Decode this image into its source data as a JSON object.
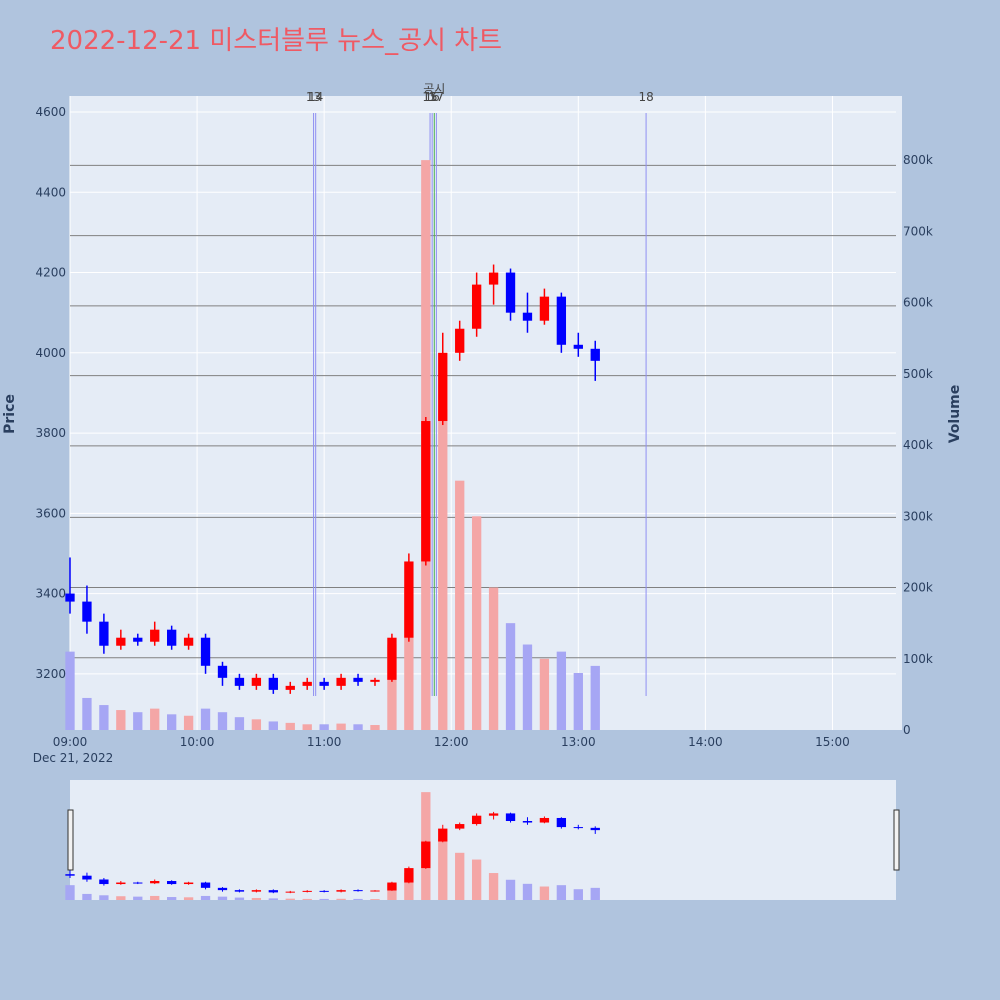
{
  "chart_data": {
    "type": "candlestick",
    "title": "2022-12-21 미스터블루 뉴스_공시 차트",
    "xlabel": "",
    "ylabel": "Price",
    "y2label": "Volume",
    "x_start": "09:00",
    "x_end": "15:30",
    "x_date_label": "Dec 21, 2022",
    "x_ticks": [
      "09:00",
      "10:00",
      "11:00",
      "12:00",
      "13:00",
      "14:00",
      "15:00"
    ],
    "y_range": [
      3060,
      4640
    ],
    "y_ticks": [
      3200,
      3400,
      3600,
      3800,
      4000,
      4200,
      4400,
      4600
    ],
    "y2_range": [
      0,
      890000
    ],
    "y2_ticks": [
      0,
      100000,
      200000,
      300000,
      400000,
      500000,
      600000,
      700000,
      800000
    ],
    "y2_tick_labels": [
      "0",
      "100k",
      "200k",
      "300k",
      "400k",
      "500k",
      "600k",
      "700k",
      "800k"
    ],
    "colors": {
      "up": "#ff0000",
      "down": "#0000ff",
      "vol_up": "#f4a6a6",
      "vol_down": "#a6a6f4",
      "plot_bg": "#e5ecf6",
      "page_bg": "#b0c4de",
      "grid": "#ffffff",
      "hline": "#808080",
      "news_line": "#8f8ff2",
      "disclosure_line": "#4caf50",
      "title": "#ef5a64"
    },
    "news_markers": [
      {
        "time": "10:55",
        "label": "13"
      },
      {
        "time": "10:56",
        "label": "14"
      },
      {
        "time": "11:50",
        "label": "15"
      },
      {
        "time": "11:51",
        "label": "16"
      },
      {
        "time": "11:53",
        "label": "17"
      },
      {
        "time": "13:32",
        "label": "18"
      }
    ],
    "disclosure_markers": [
      {
        "time": "11:52",
        "label": "공시"
      }
    ],
    "reference_prices": [
      3240,
      3415,
      3590,
      3768,
      3943,
      4117,
      4292,
      4467
    ],
    "candles": [
      {
        "t": "09:00",
        "o": 3400,
        "h": 3490,
        "l": 3350,
        "c": 3380,
        "v": 110000
      },
      {
        "t": "09:08",
        "o": 3380,
        "h": 3420,
        "l": 3300,
        "c": 3330,
        "v": 45000
      },
      {
        "t": "09:16",
        "o": 3330,
        "h": 3350,
        "l": 3250,
        "c": 3270,
        "v": 35000
      },
      {
        "t": "09:24",
        "o": 3270,
        "h": 3310,
        "l": 3260,
        "c": 3290,
        "v": 28000
      },
      {
        "t": "09:32",
        "o": 3290,
        "h": 3300,
        "l": 3270,
        "c": 3280,
        "v": 25000
      },
      {
        "t": "09:40",
        "o": 3280,
        "h": 3330,
        "l": 3270,
        "c": 3310,
        "v": 30000
      },
      {
        "t": "09:48",
        "o": 3310,
        "h": 3320,
        "l": 3260,
        "c": 3270,
        "v": 22000
      },
      {
        "t": "09:56",
        "o": 3270,
        "h": 3300,
        "l": 3260,
        "c": 3290,
        "v": 20000
      },
      {
        "t": "10:04",
        "o": 3290,
        "h": 3300,
        "l": 3200,
        "c": 3220,
        "v": 30000
      },
      {
        "t": "10:12",
        "o": 3220,
        "h": 3230,
        "l": 3170,
        "c": 3190,
        "v": 25000
      },
      {
        "t": "10:20",
        "o": 3190,
        "h": 3200,
        "l": 3160,
        "c": 3170,
        "v": 18000
      },
      {
        "t": "10:28",
        "o": 3170,
        "h": 3200,
        "l": 3160,
        "c": 3190,
        "v": 15000
      },
      {
        "t": "10:36",
        "o": 3190,
        "h": 3200,
        "l": 3150,
        "c": 3160,
        "v": 12000
      },
      {
        "t": "10:44",
        "o": 3160,
        "h": 3180,
        "l": 3150,
        "c": 3170,
        "v": 10000
      },
      {
        "t": "10:52",
        "o": 3170,
        "h": 3190,
        "l": 3160,
        "c": 3180,
        "v": 8000
      },
      {
        "t": "11:00",
        "o": 3180,
        "h": 3190,
        "l": 3160,
        "c": 3170,
        "v": 8000
      },
      {
        "t": "11:08",
        "o": 3170,
        "h": 3200,
        "l": 3160,
        "c": 3190,
        "v": 9000
      },
      {
        "t": "11:16",
        "o": 3190,
        "h": 3200,
        "l": 3170,
        "c": 3180,
        "v": 8000
      },
      {
        "t": "11:24",
        "o": 3180,
        "h": 3190,
        "l": 3170,
        "c": 3185,
        "v": 7000
      },
      {
        "t": "11:32",
        "o": 3185,
        "h": 3300,
        "l": 3180,
        "c": 3290,
        "v": 120000
      },
      {
        "t": "11:40",
        "o": 3290,
        "h": 3500,
        "l": 3280,
        "c": 3480,
        "v": 200000
      },
      {
        "t": "11:48",
        "o": 3480,
        "h": 3840,
        "l": 3470,
        "c": 3830,
        "v": 800000
      },
      {
        "t": "11:56",
        "o": 3830,
        "h": 4050,
        "l": 3820,
        "c": 4000,
        "v": 450000
      },
      {
        "t": "12:04",
        "o": 4000,
        "h": 4080,
        "l": 3980,
        "c": 4060,
        "v": 350000
      },
      {
        "t": "12:12",
        "o": 4060,
        "h": 4200,
        "l": 4040,
        "c": 4170,
        "v": 300000
      },
      {
        "t": "12:20",
        "o": 4170,
        "h": 4220,
        "l": 4120,
        "c": 4200,
        "v": 200000
      },
      {
        "t": "12:28",
        "o": 4200,
        "h": 4210,
        "l": 4080,
        "c": 4100,
        "v": 150000
      },
      {
        "t": "12:36",
        "o": 4100,
        "h": 4150,
        "l": 4050,
        "c": 4080,
        "v": 120000
      },
      {
        "t": "12:44",
        "o": 4080,
        "h": 4160,
        "l": 4070,
        "c": 4140,
        "v": 100000
      },
      {
        "t": "12:52",
        "o": 4140,
        "h": 4150,
        "l": 4000,
        "c": 4020,
        "v": 110000
      },
      {
        "t": "13:00",
        "o": 4020,
        "h": 4050,
        "l": 3990,
        "c": 4010,
        "v": 80000
      },
      {
        "t": "13:08",
        "o": 4010,
        "h": 4030,
        "l": 3930,
        "c": 3980,
        "v": 90000
      }
    ]
  }
}
